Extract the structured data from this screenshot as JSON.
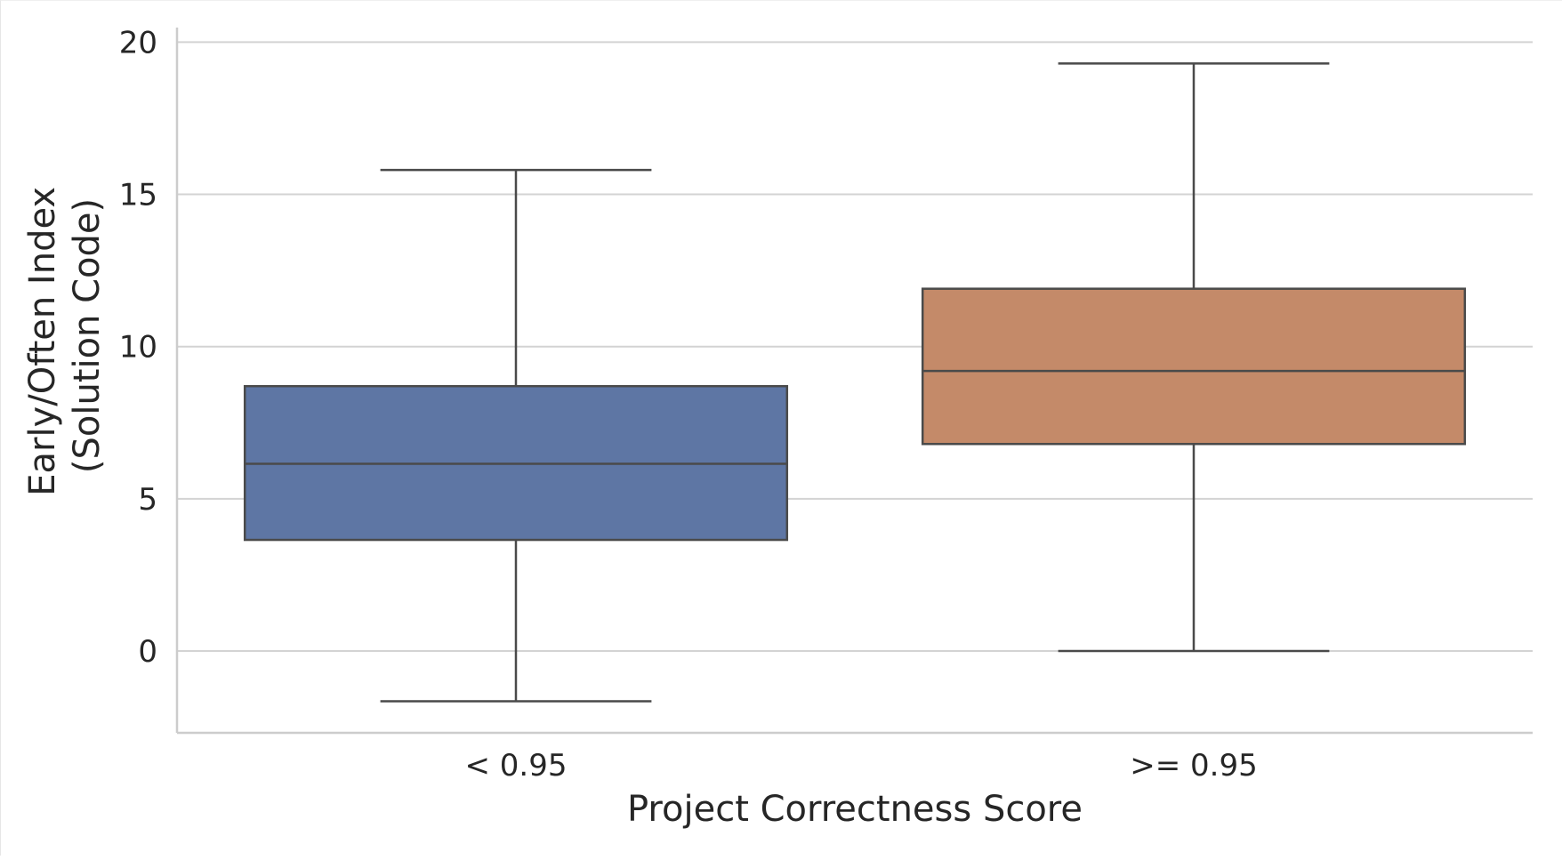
{
  "chart_data": {
    "type": "box",
    "title": "",
    "xlabel": "Project Correctness Score",
    "ylabel_lines": [
      "Early/Often Index",
      "(Solution Code)"
    ],
    "categories": [
      "< 0.95",
      ">= 0.95"
    ],
    "boxes": [
      {
        "category": "< 0.95",
        "whisker_low": -1.65,
        "q1": 3.65,
        "median": 6.15,
        "q3": 8.7,
        "whisker_high": 15.8,
        "color": "#5e76a4"
      },
      {
        "category": ">= 0.95",
        "whisker_low": 0.0,
        "q1": 6.8,
        "median": 9.2,
        "q3": 11.9,
        "whisker_high": 19.3,
        "color": "#c48a69"
      }
    ],
    "yticks": [
      0,
      5,
      10,
      15,
      20
    ],
    "ytick_labels": [
      "0",
      "5",
      "10",
      "15",
      "20"
    ],
    "ylim": [
      -2.7,
      20.4
    ],
    "grid": "horizontal",
    "colors": {
      "grid": "#d3d3d3",
      "axis": "#cccccc",
      "line": "#4a4a4a",
      "text": "#262626"
    }
  }
}
